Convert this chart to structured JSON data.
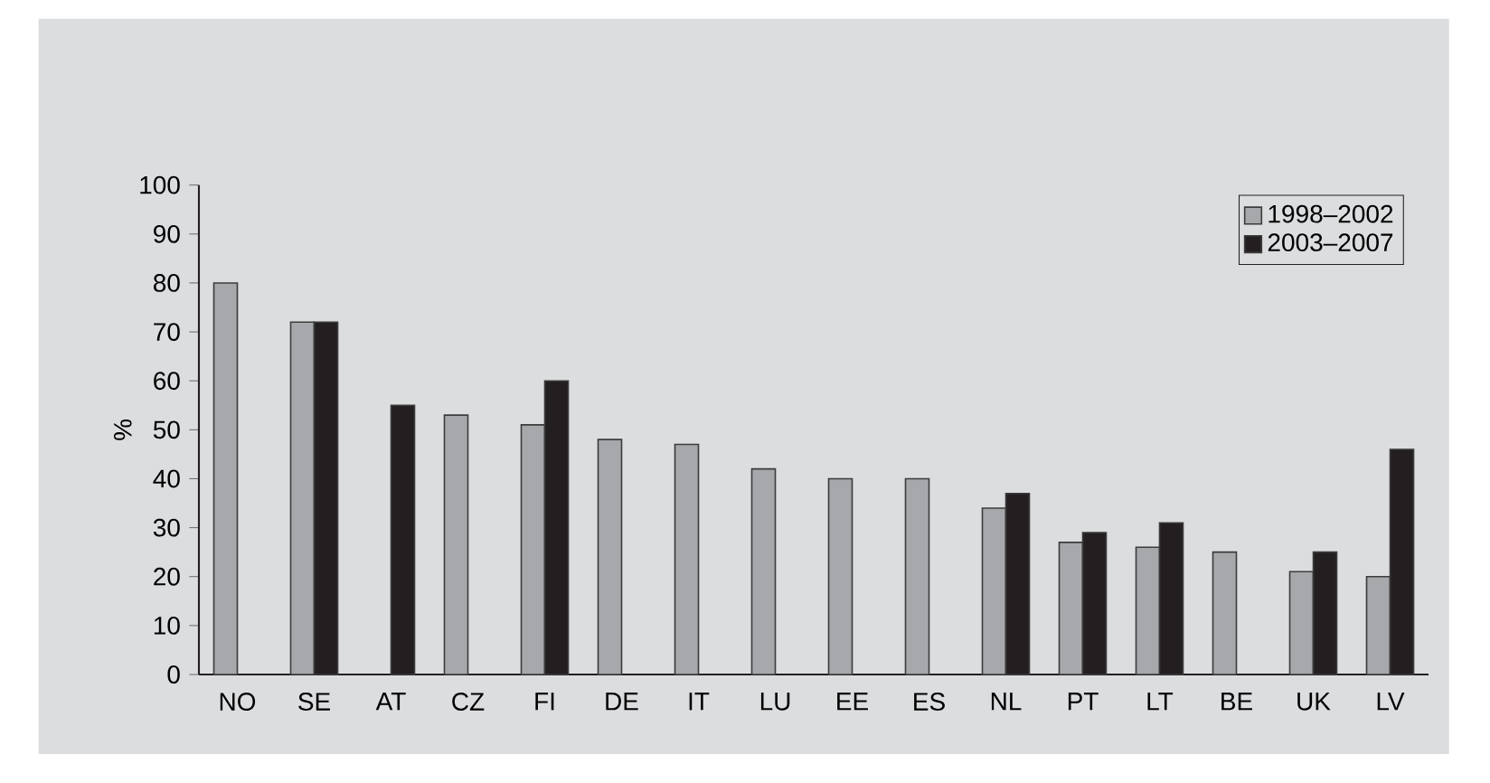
{
  "chart_data": {
    "type": "bar",
    "ylabel": "%",
    "categories": [
      "NO",
      "SE",
      "AT",
      "CZ",
      "FI",
      "DE",
      "IT",
      "LU",
      "EE",
      "ES",
      "NL",
      "PT",
      "LT",
      "BE",
      "UK",
      "LV"
    ],
    "series": [
      {
        "name": "1998–2002",
        "color": "#a7a8ab",
        "values": [
          80,
          72,
          null,
          53,
          51,
          48,
          47,
          42,
          40,
          40,
          34,
          27,
          26,
          25,
          21,
          20
        ]
      },
      {
        "name": "2003–2007",
        "color": "#231f20",
        "values": [
          null,
          72,
          55,
          null,
          60,
          null,
          null,
          null,
          null,
          null,
          37,
          29,
          31,
          null,
          25,
          46
        ]
      }
    ],
    "ylim": [
      0,
      100
    ],
    "yticks": [
      0,
      10,
      20,
      30,
      40,
      50,
      60,
      70,
      80,
      90,
      100
    ],
    "legend": "top right"
  }
}
